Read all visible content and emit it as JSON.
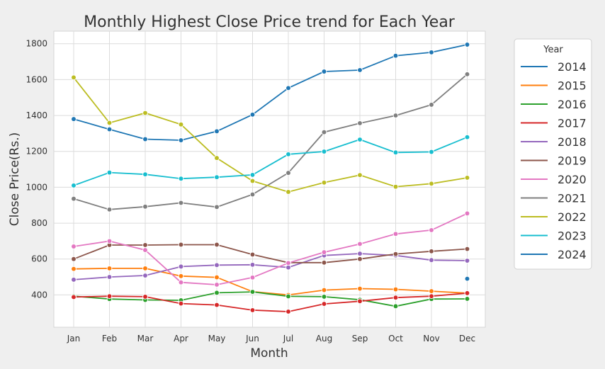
{
  "chart_data": {
    "type": "line",
    "title": "Monthly Highest Close Price trend for Each Year",
    "xlabel": "Month",
    "ylabel": "Close Price(Rs.)",
    "categories": [
      "Jan",
      "Feb",
      "Mar",
      "Apr",
      "May",
      "Jun",
      "Jul",
      "Aug",
      "Sep",
      "Oct",
      "Nov",
      "Dec"
    ],
    "ylim": [
      220,
      1870
    ],
    "yticks": [
      400,
      600,
      800,
      1000,
      1200,
      1400,
      1600,
      1800
    ],
    "grid": true,
    "legend": {
      "title": "Year",
      "position": "outside-right"
    },
    "series": [
      {
        "name": "2014",
        "color": "#1f77b4",
        "values": [
          1380,
          1323,
          1268,
          1262,
          1312,
          1405,
          1553,
          1645,
          1653,
          1733,
          1752,
          1795
        ]
      },
      {
        "name": "2015",
        "color": "#ff7f0e",
        "values": [
          545,
          548,
          548,
          505,
          498,
          418,
          400,
          427,
          435,
          431,
          421,
          410
        ]
      },
      {
        "name": "2016",
        "color": "#2ca02c",
        "values": [
          393,
          377,
          372,
          370,
          412,
          417,
          392,
          390,
          373,
          337,
          377,
          378
        ]
      },
      {
        "name": "2017",
        "color": "#d62728",
        "values": [
          388,
          393,
          390,
          352,
          344,
          315,
          307,
          350,
          365,
          385,
          393,
          410
        ]
      },
      {
        "name": "2018",
        "color": "#9467bd",
        "values": [
          485,
          500,
          508,
          558,
          566,
          568,
          553,
          620,
          630,
          620,
          594,
          591
        ]
      },
      {
        "name": "2019",
        "color": "#8c564b",
        "values": [
          600,
          678,
          678,
          680,
          680,
          625,
          580,
          580,
          600,
          628,
          643,
          656
        ]
      },
      {
        "name": "2020",
        "color": "#e377c2",
        "values": [
          670,
          700,
          650,
          470,
          457,
          497,
          578,
          638,
          684,
          740,
          761,
          854
        ]
      },
      {
        "name": "2021",
        "color": "#7f7f7f",
        "values": [
          936,
          876,
          892,
          913,
          890,
          960,
          1080,
          1307,
          1357,
          1400,
          1460,
          1630
        ]
      },
      {
        "name": "2022",
        "color": "#bcbd22",
        "values": [
          1612,
          1359,
          1414,
          1350,
          1163,
          1035,
          974,
          1026,
          1068,
          1003,
          1020,
          1053
        ]
      },
      {
        "name": "2023",
        "color": "#17becf",
        "values": [
          1010,
          1082,
          1072,
          1048,
          1056,
          1069,
          1184,
          1199,
          1266,
          1194,
          1197,
          1279
        ]
      },
      {
        "name": "2024",
        "color": "#1f77b4",
        "values": [
          null,
          null,
          null,
          null,
          null,
          null,
          null,
          null,
          null,
          null,
          null,
          490
        ]
      }
    ]
  }
}
